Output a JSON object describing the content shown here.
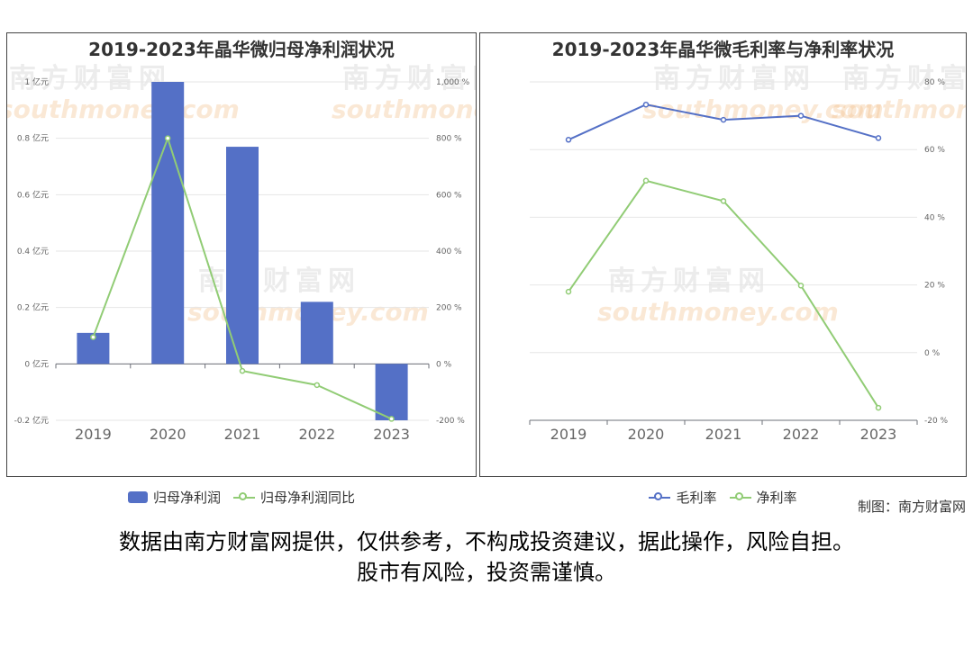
{
  "chart_data": [
    {
      "type": "bar+line",
      "title": "2019-2023年晶华微归母净利润状况",
      "categories": [
        "2019",
        "2020",
        "2021",
        "2022",
        "2023"
      ],
      "series": [
        {
          "name": "归母净利润",
          "type": "bar",
          "axis": "left",
          "color": "#5470c6",
          "values": [
            0.11,
            1.0,
            0.77,
            0.22,
            -0.2
          ]
        },
        {
          "name": "归母净利润同比",
          "type": "line",
          "axis": "right",
          "color": "#91cc75",
          "values": [
            95,
            800,
            -25,
            -75,
            -195
          ]
        }
      ],
      "y_left": {
        "ticks": [
          -0.2,
          0,
          0.2,
          0.4,
          0.6,
          0.8,
          1.0
        ],
        "tick_labels": [
          "-0.2 亿元",
          "0 亿元",
          "0.2 亿元",
          "0.4 亿元",
          "0.6 亿元",
          "0.8 亿元",
          "1 亿元"
        ],
        "ylim": [
          -0.2,
          1.0
        ]
      },
      "y_right": {
        "ticks": [
          -200,
          0,
          200,
          400,
          600,
          800,
          1000
        ],
        "tick_labels": [
          "-200 %",
          "0 %",
          "200 %",
          "400 %",
          "600 %",
          "800 %",
          "1,000 %"
        ],
        "ylim": [
          -200,
          1000
        ]
      },
      "grid": true,
      "legend": "bottom"
    },
    {
      "type": "line",
      "title": "2019-2023年晶华微毛利率与净利率状况",
      "categories": [
        "2019",
        "2020",
        "2021",
        "2022",
        "2023"
      ],
      "series": [
        {
          "name": "毛利率",
          "color": "#5470c6",
          "values": [
            62.9,
            73.3,
            68.8,
            70.0,
            63.4
          ]
        },
        {
          "name": "净利率",
          "color": "#91cc75",
          "values": [
            18.0,
            50.8,
            44.8,
            19.8,
            -16.3
          ]
        }
      ],
      "y_right": {
        "ticks": [
          -20,
          0,
          20,
          40,
          60,
          80
        ],
        "tick_labels": [
          "-20 %",
          "0 %",
          "20 %",
          "40 %",
          "60 %",
          "80 %"
        ],
        "ylim": [
          -20,
          80
        ]
      },
      "grid": true,
      "legend": "bottom"
    }
  ],
  "watermark": {
    "cn": "南方财富网",
    "en": "southmoney.com"
  },
  "footer": {
    "credit": "制图：南方财富网",
    "line1": "数据由南方财富网提供，仅供参考，不构成投资建议，据此操作，风险自担。",
    "line2": "股市有风险，投资需谨慎。"
  },
  "colors": {
    "bar": "#5470c6",
    "line_green": "#91cc75",
    "line_blue": "#5470c6",
    "watermark": "#f3c08a"
  }
}
